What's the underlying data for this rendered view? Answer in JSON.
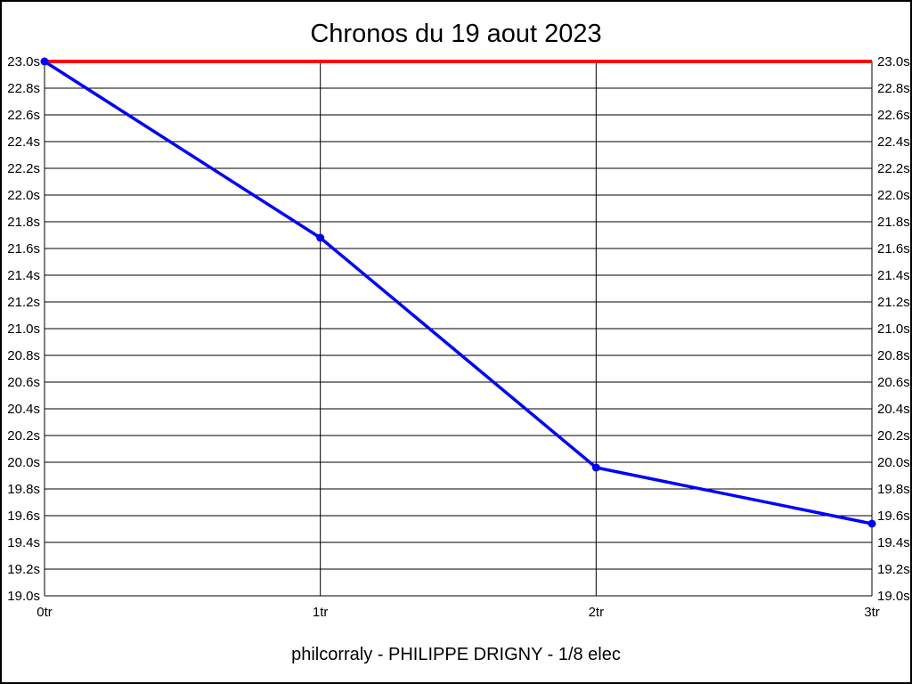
{
  "title": "Chronos du 19 aout 2023",
  "subtitle": "philcorraly - PHILIPPE DRIGNY - 1/8 elec",
  "colors": {
    "background": "#ffffff",
    "border": "#000000",
    "grid": "#000000",
    "text": "#000000",
    "series": "#0000ff",
    "reference": "#ff0000"
  },
  "chart_data": {
    "type": "line",
    "title": "Chronos du 19 aout 2023",
    "xlabel": "",
    "ylabel": "",
    "x": [
      0,
      1,
      2,
      3
    ],
    "x_tick_labels": [
      "0tr",
      "1tr",
      "2tr",
      "3tr"
    ],
    "y_tick_labels": [
      "23.0s",
      "22.8s",
      "22.6s",
      "22.4s",
      "22.2s",
      "22.0s",
      "21.8s",
      "21.6s",
      "21.4s",
      "21.2s",
      "21.0s",
      "20.8s",
      "20.6s",
      "20.4s",
      "20.2s",
      "20.0s",
      "19.8s",
      "19.6s",
      "19.4s",
      "19.2s",
      "19.0s"
    ],
    "ylim": [
      19.0,
      23.0
    ],
    "y_tick_step": 0.2,
    "series": [
      {
        "name": "lap_times",
        "color": "#0000ff",
        "values": [
          23.0,
          21.68,
          19.96,
          19.54
        ]
      }
    ],
    "reference_line": {
      "value": 23.0,
      "color": "#ff0000"
    },
    "grid": true,
    "y_labels_both_sides": true,
    "legend": "none"
  }
}
